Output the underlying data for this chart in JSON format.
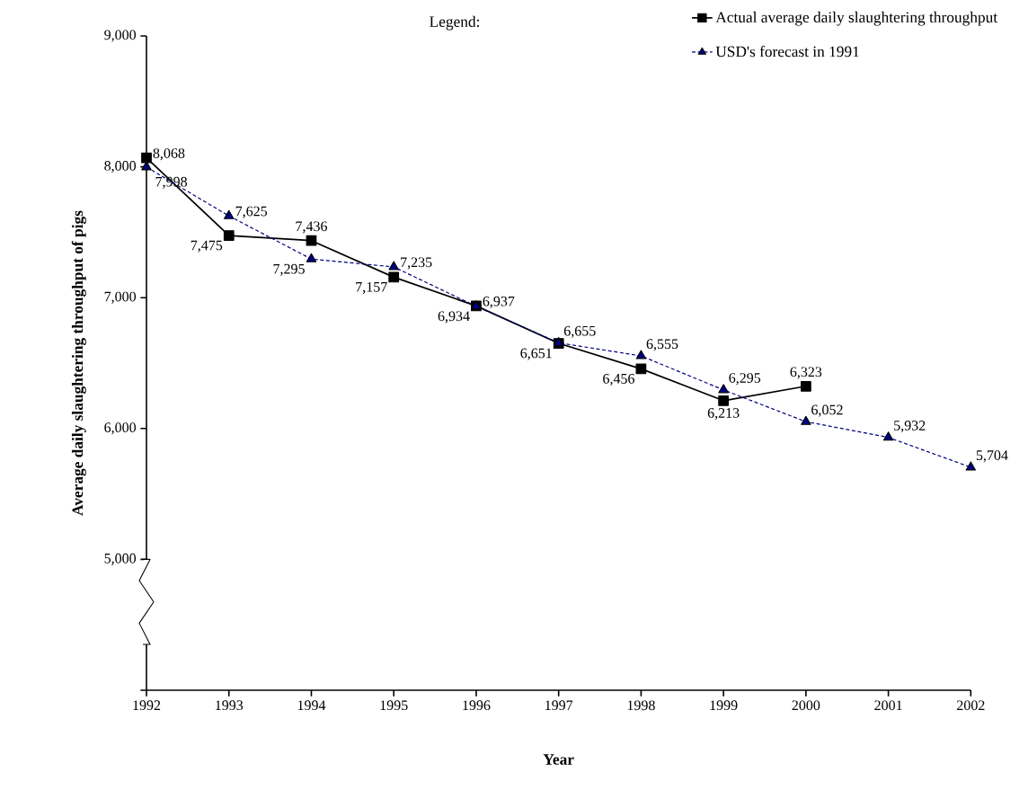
{
  "chart_data": {
    "type": "line",
    "xlabel": "Year",
    "ylabel": "Average daily slaughtering throughput of pigs",
    "legend_title": "Legend:",
    "legend": "top right",
    "grid": false,
    "x": [
      1992,
      1993,
      1994,
      1995,
      1996,
      1997,
      1998,
      1999,
      2000,
      2001,
      2002
    ],
    "xlim": [
      1992,
      2002
    ],
    "xticks": [
      1992,
      1993,
      1994,
      1995,
      1996,
      1997,
      1998,
      1999,
      2000,
      2001,
      2002
    ],
    "ylim": [
      4000,
      9000
    ],
    "yticks": [
      {
        "value": 4000,
        "label": null
      },
      {
        "value": 5000,
        "label": "5,000"
      },
      {
        "value": 6000,
        "label": "6,000"
      },
      {
        "value": 7000,
        "label": "7,000"
      },
      {
        "value": 8000,
        "label": "8,000"
      },
      {
        "value": 9000,
        "label": "9,000"
      }
    ],
    "series": [
      {
        "name": "Actual average daily slaughtering throughput",
        "color": "#000000",
        "marker": "square",
        "line_style": "solid",
        "values": [
          8068,
          7475,
          7436,
          7157,
          6937,
          6651,
          6456,
          6213,
          6323,
          null,
          null
        ],
        "value_labels": [
          "8,068",
          "7,475",
          "7,436",
          "7,157",
          "6,937",
          "6,651",
          "6,456",
          "6,213",
          "6,323",
          null,
          null
        ]
      },
      {
        "name": "USD's forecast in 1991",
        "color": "#000080",
        "marker": "triangle",
        "line_style": "dotted",
        "values": [
          7998,
          7625,
          7295,
          7235,
          6934,
          6655,
          6555,
          6295,
          6052,
          5932,
          5704
        ],
        "value_labels": [
          "7,998",
          "7,625",
          "7,295",
          "7,235",
          "6,934",
          "6,655",
          "6,555",
          "6,295",
          "6,052",
          "5,932",
          "5,704"
        ]
      }
    ]
  }
}
